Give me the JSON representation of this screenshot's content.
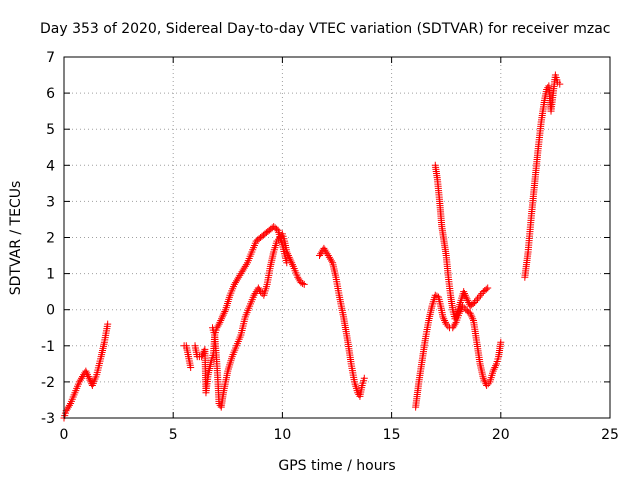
{
  "chart_data": {
    "type": "scatter",
    "title": "Day 353 of 2020, Sidereal Day-to-day VTEC variation (SDTVAR) for receiver mzac",
    "xlabel": "GPS time / hours",
    "ylabel": "SDTVAR / TECUs",
    "xlim": [
      0,
      25
    ],
    "ylim": [
      -3,
      7
    ],
    "xticks": [
      0,
      5,
      10,
      15,
      20,
      25
    ],
    "yticks": [
      -3,
      -2,
      -1,
      0,
      1,
      2,
      3,
      4,
      5,
      6,
      7
    ],
    "grid": true,
    "legend": "none",
    "marker": "+",
    "series": [
      {
        "color": "#ff0000",
        "segments": [
          [
            [
              0.0,
              -3.0
            ],
            [
              0.1,
              -2.8
            ],
            [
              0.3,
              -2.6
            ],
            [
              0.5,
              -2.3
            ],
            [
              0.7,
              -2.0
            ],
            [
              0.9,
              -1.8
            ],
            [
              1.0,
              -1.7
            ],
            [
              1.15,
              -1.9
            ],
            [
              1.3,
              -2.1
            ],
            [
              1.5,
              -1.8
            ],
            [
              1.7,
              -1.3
            ],
            [
              1.85,
              -0.9
            ],
            [
              2.0,
              -0.4
            ]
          ],
          [
            [
              5.5,
              -1.0
            ],
            [
              5.6,
              -1.0
            ],
            [
              5.7,
              -1.3
            ],
            [
              5.8,
              -1.6
            ]
          ],
          [
            [
              6.0,
              -1.0
            ],
            [
              6.1,
              -1.3
            ],
            [
              6.3,
              -1.3
            ],
            [
              6.45,
              -1.1
            ],
            [
              6.5,
              -2.3
            ],
            [
              6.6,
              -1.8
            ],
            [
              6.75,
              -1.4
            ],
            [
              6.85,
              -1.2
            ],
            [
              6.9,
              -0.7
            ],
            [
              7.0,
              -1.5
            ],
            [
              7.05,
              -2.0
            ],
            [
              7.1,
              -2.6
            ],
            [
              7.2,
              -2.7
            ],
            [
              7.3,
              -2.3
            ],
            [
              7.5,
              -1.7
            ],
            [
              7.7,
              -1.3
            ],
            [
              7.9,
              -1.0
            ],
            [
              8.1,
              -0.7
            ],
            [
              8.3,
              -0.2
            ],
            [
              8.5,
              0.1
            ],
            [
              8.7,
              0.4
            ],
            [
              8.9,
              0.6
            ],
            [
              9.0,
              0.5
            ],
            [
              9.15,
              0.4
            ],
            [
              9.3,
              0.7
            ],
            [
              9.45,
              1.2
            ],
            [
              9.6,
              1.6
            ],
            [
              9.75,
              1.9
            ],
            [
              9.9,
              2.0
            ],
            [
              10.0,
              2.1
            ],
            [
              10.1,
              1.9
            ],
            [
              10.2,
              1.6
            ],
            [
              10.35,
              1.4
            ],
            [
              10.5,
              1.2
            ],
            [
              10.7,
              0.9
            ],
            [
              10.85,
              0.75
            ],
            [
              11.0,
              0.7
            ]
          ],
          [
            [
              6.8,
              -0.5
            ],
            [
              6.9,
              -0.7
            ],
            [
              7.0,
              -0.5
            ],
            [
              7.1,
              -0.4
            ],
            [
              7.25,
              -0.2
            ],
            [
              7.4,
              0.0
            ],
            [
              7.6,
              0.4
            ],
            [
              7.8,
              0.7
            ],
            [
              8.0,
              0.9
            ],
            [
              8.2,
              1.1
            ],
            [
              8.4,
              1.3
            ],
            [
              8.6,
              1.6
            ],
            [
              8.8,
              1.9
            ],
            [
              9.0,
              2.0
            ],
            [
              9.2,
              2.1
            ],
            [
              9.4,
              2.2
            ],
            [
              9.6,
              2.3
            ],
            [
              9.8,
              2.2
            ],
            [
              10.0,
              1.8
            ],
            [
              10.2,
              1.3
            ]
          ],
          [
            [
              11.7,
              1.5
            ],
            [
              11.8,
              1.6
            ],
            [
              11.9,
              1.7
            ],
            [
              12.0,
              1.6
            ],
            [
              12.15,
              1.45
            ],
            [
              12.3,
              1.3
            ],
            [
              12.45,
              0.9
            ],
            [
              12.6,
              0.4
            ],
            [
              12.8,
              -0.2
            ],
            [
              13.0,
              -0.9
            ],
            [
              13.15,
              -1.5
            ],
            [
              13.3,
              -2.0
            ],
            [
              13.45,
              -2.3
            ],
            [
              13.55,
              -2.4
            ],
            [
              13.65,
              -2.1
            ],
            [
              13.75,
              -1.9
            ]
          ],
          [
            [
              16.1,
              -2.7
            ],
            [
              16.25,
              -2.0
            ],
            [
              16.4,
              -1.4
            ],
            [
              16.55,
              -0.8
            ],
            [
              16.7,
              -0.3
            ],
            [
              16.85,
              0.1
            ],
            [
              17.0,
              0.4
            ],
            [
              17.15,
              0.35
            ],
            [
              17.25,
              0.1
            ],
            [
              17.35,
              -0.2
            ],
            [
              17.5,
              -0.4
            ],
            [
              17.65,
              -0.5
            ],
            [
              17.8,
              -0.5
            ],
            [
              17.95,
              -0.35
            ],
            [
              18.1,
              -0.1
            ],
            [
              18.25,
              0.1
            ],
            [
              18.4,
              0.0
            ],
            [
              18.6,
              -0.1
            ],
            [
              18.75,
              -0.3
            ],
            [
              18.9,
              -0.9
            ],
            [
              19.05,
              -1.5
            ],
            [
              19.2,
              -1.9
            ],
            [
              19.35,
              -2.1
            ],
            [
              19.5,
              -2.0
            ],
            [
              19.65,
              -1.7
            ],
            [
              19.8,
              -1.5
            ],
            [
              19.9,
              -1.3
            ],
            [
              20.0,
              -0.9
            ]
          ],
          [
            [
              17.0,
              4.0
            ],
            [
              17.1,
              3.6
            ],
            [
              17.2,
              3.0
            ],
            [
              17.3,
              2.3
            ],
            [
              17.4,
              1.9
            ],
            [
              17.5,
              1.5
            ],
            [
              17.6,
              0.9
            ],
            [
              17.7,
              0.4
            ],
            [
              17.8,
              0.0
            ],
            [
              17.9,
              -0.25
            ],
            [
              18.0,
              -0.1
            ],
            [
              18.15,
              0.2
            ],
            [
              18.3,
              0.5
            ],
            [
              18.45,
              0.3
            ],
            [
              18.6,
              0.1
            ],
            [
              18.8,
              0.2
            ],
            [
              19.0,
              0.35
            ],
            [
              19.2,
              0.5
            ],
            [
              19.4,
              0.6
            ]
          ],
          [
            [
              21.1,
              0.9
            ],
            [
              21.25,
              1.6
            ],
            [
              21.4,
              2.6
            ],
            [
              21.55,
              3.5
            ],
            [
              21.7,
              4.4
            ],
            [
              21.85,
              5.2
            ],
            [
              22.0,
              5.8
            ],
            [
              22.1,
              6.1
            ],
            [
              22.2,
              6.2
            ],
            [
              22.3,
              5.5
            ],
            [
              22.4,
              6.0
            ],
            [
              22.5,
              6.5
            ],
            [
              22.6,
              6.3
            ],
            [
              22.7,
              6.25
            ]
          ]
        ]
      }
    ]
  }
}
